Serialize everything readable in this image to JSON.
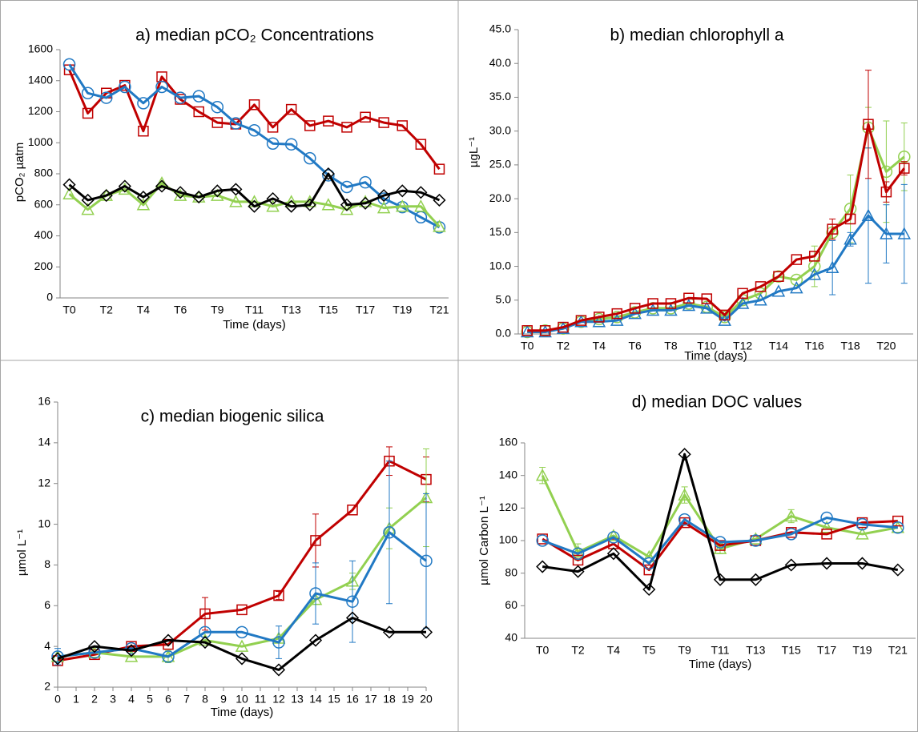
{
  "chart_data": [
    {
      "type": "line",
      "title": "a) median pCO₂ Concentrations",
      "y_label": "pCO₂ µatm",
      "x_label": "Time  (days)",
      "categories": [
        "T0",
        null,
        "T2",
        null,
        "T4",
        null,
        "T6",
        null,
        "T9",
        null,
        "T11",
        null,
        "T13",
        null,
        "T15",
        null,
        "T17",
        null,
        "T19",
        null,
        "T21"
      ],
      "ylim": [
        0,
        1600
      ],
      "yticks": [
        0,
        200,
        400,
        600,
        800,
        1000,
        1200,
        1400,
        1600
      ],
      "series": [
        {
          "color": "#c00000",
          "marker": "square",
          "values": [
            1470,
            1190,
            1320,
            1370,
            1075,
            1425,
            1280,
            1200,
            1130,
            1120,
            1245,
            1100,
            1215,
            1110,
            1140,
            1100,
            1165,
            1130,
            1110,
            990,
            830
          ]
        },
        {
          "color": "#2179c4",
          "marker": "circle",
          "values": [
            1505,
            1320,
            1290,
            1360,
            1255,
            1360,
            1290,
            1300,
            1230,
            1125,
            1080,
            995,
            990,
            900,
            790,
            715,
            745,
            640,
            585,
            520,
            455
          ]
        },
        {
          "color": "#92d050",
          "marker": "triangle",
          "values": [
            670,
            570,
            660,
            700,
            600,
            740,
            660,
            650,
            660,
            620,
            620,
            590,
            620,
            620,
            600,
            570,
            620,
            580,
            590,
            590,
            460
          ]
        },
        {
          "color": "#000000",
          "marker": "diamond",
          "values": [
            730,
            630,
            660,
            720,
            650,
            720,
            680,
            650,
            690,
            700,
            590,
            640,
            590,
            600,
            800,
            600,
            610,
            660,
            690,
            680,
            630
          ]
        }
      ]
    },
    {
      "type": "line",
      "title": "b) median chlorophyll a",
      "y_label": "µgL⁻¹",
      "x_label": "Time (days)",
      "categories": [
        "T0",
        null,
        "T2",
        null,
        "T4",
        null,
        "T6",
        null,
        "T8",
        null,
        "T10",
        null,
        "T12",
        null,
        "T14",
        null,
        "T16",
        null,
        "T18",
        null,
        "T20",
        null
      ],
      "ylim": [
        0,
        45
      ],
      "yticks": [
        {
          "value": 0,
          "label": "0.0"
        },
        {
          "value": 5,
          "label": "5.0"
        },
        {
          "value": 10,
          "label": "10.0"
        },
        {
          "value": 15,
          "label": "15.0"
        },
        {
          "value": 20,
          "label": "20.0"
        },
        {
          "value": 25,
          "label": "25.0"
        },
        {
          "value": 30,
          "label": "30.0"
        },
        {
          "value": 35,
          "label": "35.0"
        },
        {
          "value": 40,
          "label": "40.0"
        },
        {
          "value": 45,
          "label": "45.0"
        }
      ],
      "series": [
        {
          "color": "#92d050",
          "marker": "circle",
          "values": [
            0.3,
            0.5,
            0.8,
            1.8,
            2.2,
            2.5,
            3.2,
            3.8,
            3.8,
            4.5,
            4.0,
            2.5,
            5.0,
            6.0,
            8.5,
            8.0,
            10.0,
            15.0,
            18.5,
            30.5,
            24.0,
            26.2
          ],
          "errors": [
            null,
            null,
            null,
            null,
            null,
            null,
            null,
            null,
            null,
            null,
            null,
            null,
            null,
            null,
            null,
            null,
            3,
            null,
            5,
            3,
            7.5,
            5
          ]
        },
        {
          "color": "#2179c4",
          "marker": "triangle",
          "values": [
            0.3,
            0.3,
            0.8,
            1.8,
            1.8,
            2.0,
            3.0,
            3.5,
            3.5,
            4.2,
            3.8,
            2.0,
            4.5,
            5.0,
            6.3,
            6.8,
            8.8,
            9.8,
            14.0,
            17.5,
            14.8,
            14.8
          ],
          "errors": [
            null,
            null,
            null,
            null,
            null,
            null,
            null,
            null,
            null,
            null,
            null,
            null,
            null,
            null,
            null,
            null,
            null,
            4,
            1,
            10,
            4.3,
            7.3
          ]
        },
        {
          "color": "#c00000",
          "marker": "square",
          "values": [
            0.5,
            0.5,
            1.0,
            2.0,
            2.5,
            3.0,
            3.8,
            4.5,
            4.5,
            5.3,
            5.2,
            2.8,
            6.0,
            7.0,
            8.5,
            11.0,
            11.5,
            15.5,
            17.0,
            31.0,
            21.0,
            24.5
          ],
          "errors": [
            null,
            null,
            null,
            null,
            null,
            null,
            null,
            null,
            null,
            null,
            null,
            null,
            null,
            null,
            null,
            null,
            null,
            1.5,
            null,
            8,
            1.5,
            1
          ]
        }
      ]
    },
    {
      "type": "line",
      "title": "c) median biogenic silica",
      "y_label": "µmol L⁻¹",
      "x_label": "Time (days)",
      "x": [
        0,
        2,
        4,
        6,
        8,
        10,
        12,
        14,
        16,
        18,
        20
      ],
      "xlim": [
        0,
        20
      ],
      "xticks": [
        0,
        1,
        2,
        3,
        4,
        5,
        6,
        7,
        8,
        9,
        10,
        11,
        12,
        13,
        14,
        15,
        16,
        17,
        18,
        19,
        20
      ],
      "ylim": [
        2,
        16
      ],
      "yticks": [
        2,
        4,
        6,
        8,
        10,
        12,
        14,
        16
      ],
      "series": [
        {
          "color": "#c00000",
          "marker": "square",
          "values": [
            3.3,
            3.6,
            4.0,
            4.1,
            5.6,
            5.8,
            6.5,
            9.2,
            10.7,
            13.1,
            12.2
          ],
          "errors": [
            null,
            null,
            null,
            null,
            0.8,
            null,
            0.2,
            1.3,
            null,
            0.7,
            1.1
          ]
        },
        {
          "color": "#92d050",
          "marker": "triangle",
          "values": [
            3.5,
            3.7,
            3.5,
            3.5,
            4.3,
            4.0,
            4.4,
            6.3,
            7.2,
            9.8,
            11.3
          ],
          "errors": [
            null,
            null,
            null,
            0.3,
            null,
            null,
            null,
            null,
            0.4,
            1,
            2.4
          ]
        },
        {
          "color": "#2179c4",
          "marker": "circle",
          "values": [
            3.5,
            3.7,
            3.9,
            3.5,
            4.7,
            4.7,
            4.2,
            6.6,
            6.2,
            9.6,
            8.2
          ],
          "errors": [
            0.4,
            null,
            null,
            null,
            null,
            null,
            0.8,
            1.5,
            2,
            3.5,
            3.3
          ]
        },
        {
          "color": "#000000",
          "marker": "diamond",
          "values": [
            3.4,
            4.0,
            3.8,
            4.3,
            4.2,
            3.4,
            2.85,
            4.3,
            5.4,
            4.7,
            4.7
          ]
        }
      ]
    },
    {
      "type": "line",
      "title": "d) median DOC values",
      "y_label": "µmol Carbon L⁻¹",
      "x_label": "Time (days)",
      "categories": [
        "T0",
        "T2",
        "T4",
        "T5",
        "T9",
        "T11",
        "T13",
        "T15",
        "T17",
        "T19",
        "T21"
      ],
      "ylim": [
        40,
        160
      ],
      "yticks": [
        40,
        60,
        80,
        100,
        120,
        140,
        160
      ],
      "series": [
        {
          "color": "#92d050",
          "marker": "triangle",
          "values": [
            140,
            93,
            103,
            90,
            128,
            95,
            101,
            115,
            108,
            104,
            108
          ],
          "errors": [
            5,
            5,
            null,
            null,
            5,
            3,
            null,
            4,
            null,
            null,
            null
          ]
        },
        {
          "color": "#c00000",
          "marker": "square",
          "values": [
            101,
            88,
            98,
            82,
            111,
            97,
            100,
            105,
            104,
            111,
            112
          ]
        },
        {
          "color": "#2179c4",
          "marker": "circle",
          "values": [
            100,
            92,
            102,
            86,
            113,
            99,
            100,
            104,
            114,
            110,
            108
          ]
        },
        {
          "color": "#000000",
          "marker": "diamond",
          "values": [
            84,
            81,
            92,
            70,
            153,
            76,
            76,
            85,
            86,
            86,
            82
          ]
        }
      ]
    }
  ]
}
